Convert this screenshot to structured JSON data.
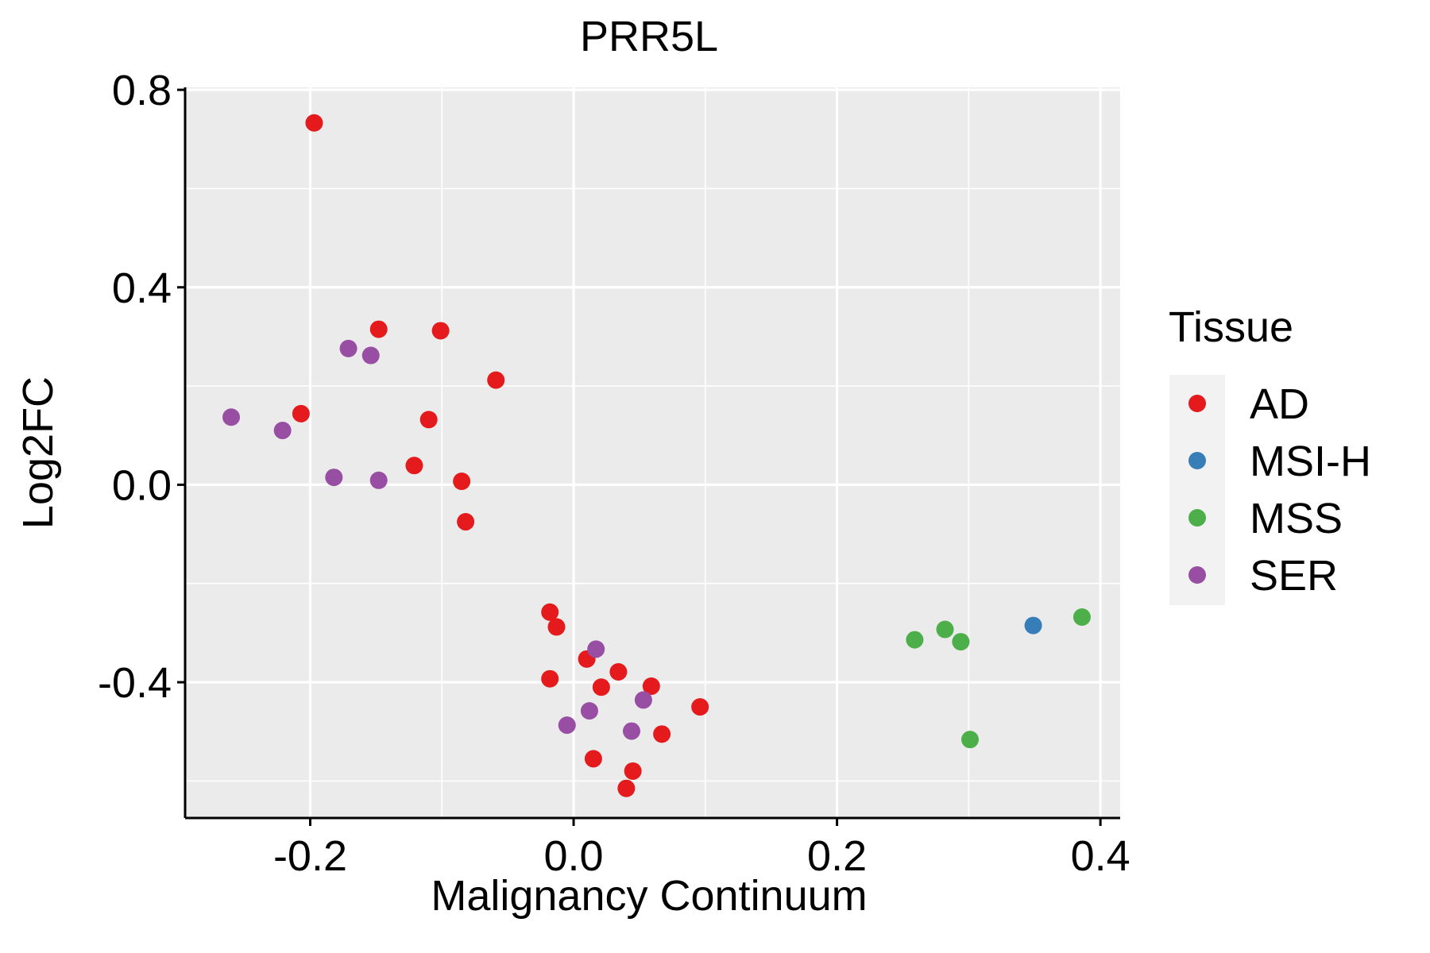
{
  "chart_data": {
    "type": "scatter",
    "title": "PRR5L",
    "xlabel": "Malignancy Continuum",
    "ylabel": "Log2FC",
    "xlim": [
      -0.295,
      0.415
    ],
    "ylim": [
      -0.675,
      0.805
    ],
    "xticks": [
      -0.2,
      0.0,
      0.2,
      0.4
    ],
    "xtick_labels": [
      "-0.2",
      "0.0",
      "0.2",
      "0.4"
    ],
    "yticks": [
      -0.4,
      0.0,
      0.4,
      0.8
    ],
    "ytick_labels": [
      "-0.4",
      "0.0",
      "0.4",
      "0.8"
    ],
    "grid": true,
    "legend": {
      "title": "Tissue",
      "position": "right",
      "entries": [
        {
          "name": "AD",
          "color": "#E41A1C"
        },
        {
          "name": "MSI-H",
          "color": "#377EB8"
        },
        {
          "name": "MSS",
          "color": "#4DAF4A"
        },
        {
          "name": "SER",
          "color": "#984EA3"
        }
      ]
    },
    "series": [
      {
        "name": "AD",
        "color": "#E41A1C",
        "points": [
          {
            "x": -0.197,
            "y": 0.733
          },
          {
            "x": -0.148,
            "y": 0.315
          },
          {
            "x": -0.101,
            "y": 0.312
          },
          {
            "x": -0.059,
            "y": 0.212
          },
          {
            "x": -0.207,
            "y": 0.144
          },
          {
            "x": -0.11,
            "y": 0.132
          },
          {
            "x": -0.121,
            "y": 0.039
          },
          {
            "x": -0.085,
            "y": 0.007
          },
          {
            "x": -0.082,
            "y": -0.075
          },
          {
            "x": -0.018,
            "y": -0.258
          },
          {
            "x": -0.013,
            "y": -0.288
          },
          {
            "x": 0.01,
            "y": -0.353
          },
          {
            "x": 0.034,
            "y": -0.379
          },
          {
            "x": -0.018,
            "y": -0.393
          },
          {
            "x": 0.021,
            "y": -0.41
          },
          {
            "x": 0.059,
            "y": -0.408
          },
          {
            "x": 0.096,
            "y": -0.45
          },
          {
            "x": 0.067,
            "y": -0.505
          },
          {
            "x": 0.015,
            "y": -0.555
          },
          {
            "x": 0.045,
            "y": -0.58
          },
          {
            "x": 0.04,
            "y": -0.615
          }
        ]
      },
      {
        "name": "MSI-H",
        "color": "#377EB8",
        "points": [
          {
            "x": 0.349,
            "y": -0.285
          }
        ]
      },
      {
        "name": "MSS",
        "color": "#4DAF4A",
        "points": [
          {
            "x": 0.259,
            "y": -0.314
          },
          {
            "x": 0.282,
            "y": -0.293
          },
          {
            "x": 0.294,
            "y": -0.318
          },
          {
            "x": 0.386,
            "y": -0.268
          },
          {
            "x": 0.301,
            "y": -0.516
          }
        ]
      },
      {
        "name": "SER",
        "color": "#984EA3",
        "points": [
          {
            "x": -0.171,
            "y": 0.276
          },
          {
            "x": -0.154,
            "y": 0.262
          },
          {
            "x": -0.26,
            "y": 0.137
          },
          {
            "x": -0.221,
            "y": 0.11
          },
          {
            "x": -0.182,
            "y": 0.015
          },
          {
            "x": -0.148,
            "y": 0.009
          },
          {
            "x": 0.017,
            "y": -0.333
          },
          {
            "x": 0.053,
            "y": -0.436
          },
          {
            "x": 0.012,
            "y": -0.458
          },
          {
            "x": -0.005,
            "y": -0.487
          },
          {
            "x": 0.044,
            "y": -0.499
          }
        ]
      }
    ]
  }
}
